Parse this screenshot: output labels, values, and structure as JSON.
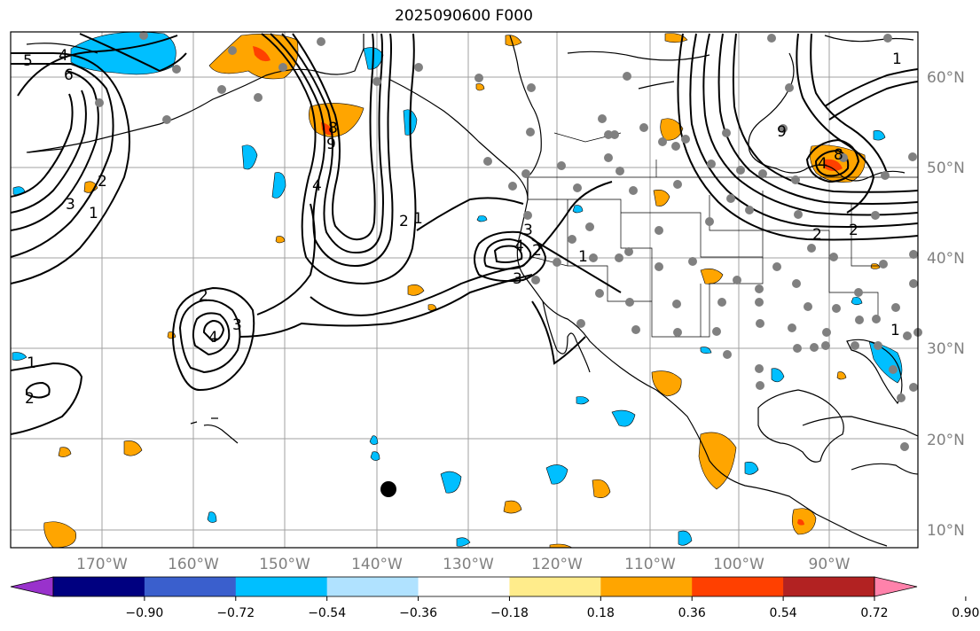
{
  "title": "2025090600 F000",
  "lat_labels": [
    "60°N",
    "50°N",
    "40°N",
    "30°N",
    "20°N",
    "10°N"
  ],
  "lon_labels": [
    "170°W",
    "160°W",
    "150°W",
    "140°W",
    "130°W",
    "120°W",
    "110°W",
    "100°W",
    "90°W"
  ],
  "colorbar": {
    "ticks": [
      "−0.90",
      "−0.72",
      "−0.54",
      "−0.36",
      "−0.18",
      "0.18",
      "0.36",
      "0.54",
      "0.72",
      "0.90"
    ],
    "colors": [
      "#9932CC",
      "#000080",
      "#3A5FCD",
      "#00BFFF",
      "#B0E2FF",
      "#FFFFFF",
      "#FFEC8B",
      "#FFA500",
      "#FF4000",
      "#B22222",
      "#FF82AB"
    ]
  },
  "contour_labels": [
    "5",
    "4",
    "6",
    "1",
    "2",
    "3",
    "9",
    "8",
    "4",
    "2",
    "1",
    "2",
    "3",
    "4",
    "3",
    "4",
    "3",
    "2",
    "1",
    "1",
    "2",
    "9",
    "8",
    "4",
    "2",
    "1",
    "1",
    "2"
  ]
}
